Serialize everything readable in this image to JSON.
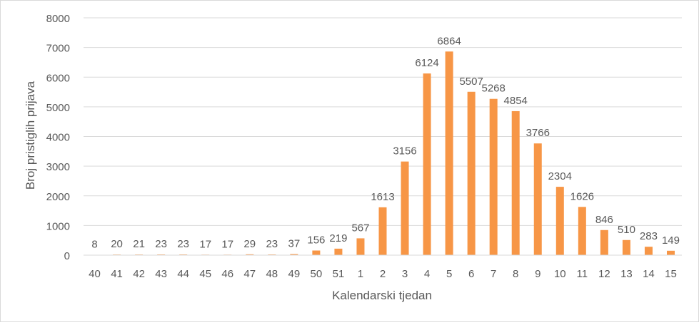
{
  "chart_data": {
    "type": "bar",
    "title": "",
    "xlabel": "Kalendarski tjedan",
    "ylabel": "Broj pristiglih prijava",
    "ylim": [
      0,
      8000
    ],
    "yticks": [
      "0",
      "1000",
      "2000",
      "3000",
      "4000",
      "5000",
      "6000",
      "7000",
      "8000"
    ],
    "grid": true,
    "bar_color": "#F79646",
    "categories": [
      "40",
      "41",
      "42",
      "43",
      "44",
      "45",
      "46",
      "47",
      "48",
      "49",
      "50",
      "51",
      "1",
      "2",
      "3",
      "4",
      "5",
      "6",
      "7",
      "8",
      "9",
      "10",
      "11",
      "12",
      "13",
      "14",
      "15"
    ],
    "values": [
      8,
      20,
      21,
      23,
      23,
      17,
      17,
      29,
      23,
      37,
      156,
      219,
      567,
      1613,
      3156,
      6124,
      6864,
      5507,
      5268,
      4854,
      3766,
      2304,
      1626,
      846,
      510,
      283,
      149
    ]
  }
}
